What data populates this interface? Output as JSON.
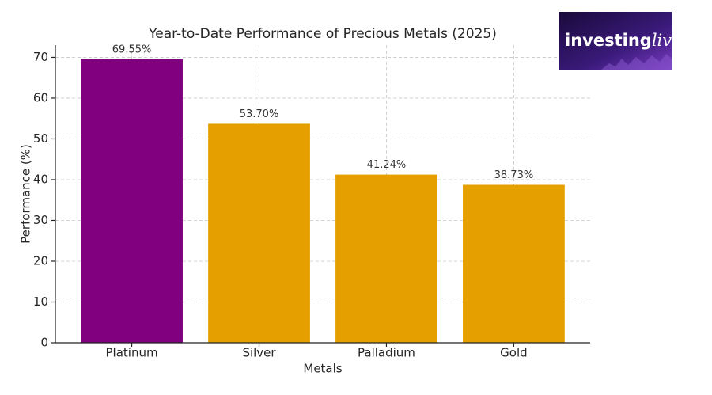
{
  "chart_data": {
    "type": "bar",
    "title": "Year-to-Date Performance of Precious Metals (2025)",
    "x_label": "Metals",
    "y_label": "Performance (%)",
    "categories": [
      "Platinum",
      "Silver",
      "Palladium",
      "Gold"
    ],
    "values": [
      69.55,
      53.7,
      41.24,
      38.73
    ],
    "value_labels": [
      "69.55%",
      "53.70%",
      "41.24%",
      "38.73%"
    ],
    "colors": [
      "#800080",
      "#e5a000",
      "#e5a000",
      "#e5a000"
    ],
    "ylim": [
      0,
      73
    ],
    "yticks": [
      0,
      10,
      20,
      30,
      40,
      50,
      60,
      70
    ],
    "grid": true
  },
  "logo": {
    "prefix": "investing",
    "suffix": "live"
  }
}
